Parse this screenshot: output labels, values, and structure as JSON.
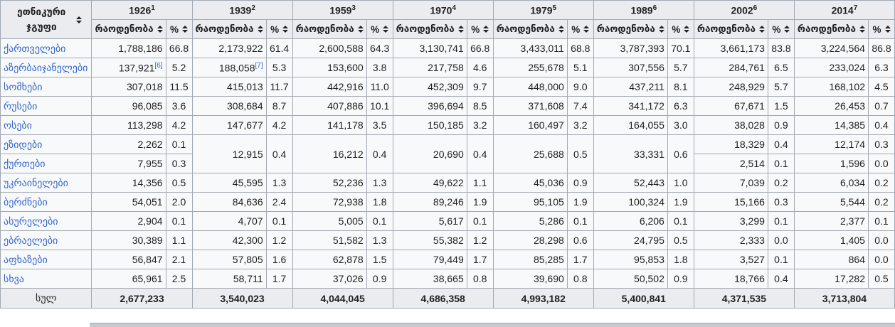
{
  "colors": {
    "header_bg": "#eaecf0",
    "cell_bg": "#f8f9fa",
    "border": "#a2a9b1",
    "link": "#3366cc",
    "text": "#202122"
  },
  "table": {
    "group_header": "ეთნიკური ჯგუფი",
    "count_label": "რაოდენობა",
    "percent_label": "%",
    "total_label": "სულ",
    "years": [
      {
        "label": "1926",
        "sup": "1"
      },
      {
        "label": "1939",
        "sup": "2"
      },
      {
        "label": "1959",
        "sup": "3"
      },
      {
        "label": "1970",
        "sup": "4"
      },
      {
        "label": "1979",
        "sup": "5"
      },
      {
        "label": "1989",
        "sup": "6"
      },
      {
        "label": "2002",
        "sup": "6"
      },
      {
        "label": "2014",
        "sup": "7"
      }
    ],
    "rows": [
      {
        "name": "ქართველები",
        "cells": [
          {
            "n": "1,788,186",
            "p": "66.8"
          },
          {
            "n": "2,173,922",
            "p": "61.4"
          },
          {
            "n": "2,600,588",
            "p": "64.3"
          },
          {
            "n": "3,130,741",
            "p": "66.8"
          },
          {
            "n": "3,433,011",
            "p": "68.8"
          },
          {
            "n": "3,787,393",
            "p": "70.1"
          },
          {
            "n": "3,661,173",
            "p": "83.8"
          },
          {
            "n": "3,224,564",
            "p": "86.8"
          }
        ]
      },
      {
        "name": "აზერბაიჯანელები",
        "cells": [
          {
            "n": "137,921",
            "ref": "[6]",
            "p": "5.2"
          },
          {
            "n": "188,058",
            "ref": "[7]",
            "p": "5.3"
          },
          {
            "n": "153,600",
            "p": "3.8"
          },
          {
            "n": "217,758",
            "p": "4.6"
          },
          {
            "n": "255,678",
            "p": "5.1"
          },
          {
            "n": "307,556",
            "p": "5.7"
          },
          {
            "n": "284,761",
            "p": "6.5"
          },
          {
            "n": "233,024",
            "p": "6.3"
          }
        ]
      },
      {
        "name": "სომხები",
        "cells": [
          {
            "n": "307,018",
            "p": "11.5"
          },
          {
            "n": "415,013",
            "p": "11.7"
          },
          {
            "n": "442,916",
            "p": "11.0"
          },
          {
            "n": "452,309",
            "p": "9.7"
          },
          {
            "n": "448,000",
            "p": "9.0"
          },
          {
            "n": "437,211",
            "p": "8.1"
          },
          {
            "n": "248,929",
            "p": "5.7"
          },
          {
            "n": "168,102",
            "p": "4.5"
          }
        ]
      },
      {
        "name": "რუსები",
        "cells": [
          {
            "n": "96,085",
            "p": "3.6"
          },
          {
            "n": "308,684",
            "p": "8.7"
          },
          {
            "n": "407,886",
            "p": "10.1"
          },
          {
            "n": "396,694",
            "p": "8.5"
          },
          {
            "n": "371,608",
            "p": "7.4"
          },
          {
            "n": "341,172",
            "p": "6.3"
          },
          {
            "n": "67,671",
            "p": "1.5"
          },
          {
            "n": "26,453",
            "p": "0.7"
          }
        ]
      },
      {
        "name": "ოსები",
        "cells": [
          {
            "n": "113,298",
            "p": "4.2"
          },
          {
            "n": "147,677",
            "p": "4.2"
          },
          {
            "n": "141,178",
            "p": "3.5"
          },
          {
            "n": "150,185",
            "p": "3.2"
          },
          {
            "n": "160,497",
            "p": "3.2"
          },
          {
            "n": "164,055",
            "p": "3.0"
          },
          {
            "n": "38,028",
            "p": "0.9"
          },
          {
            "n": "14,385",
            "p": "0.4"
          }
        ]
      },
      {
        "name": "ეზიდები",
        "cells": [
          {
            "n": "2,262",
            "p": "0.1"
          },
          {
            "n": "12,915",
            "p": "0.4",
            "rs": 2
          },
          {
            "n": "16,212",
            "p": "0.4",
            "rs": 2
          },
          {
            "n": "20,690",
            "p": "0.4",
            "rs": 2
          },
          {
            "n": "25,688",
            "p": "0.5",
            "rs": 2
          },
          {
            "n": "33,331",
            "p": "0.6",
            "rs": 2
          },
          {
            "n": "18,329",
            "p": "0.4"
          },
          {
            "n": "12,174",
            "p": "0.3"
          }
        ]
      },
      {
        "name": "ქურთები",
        "cells": [
          {
            "n": "7,955",
            "p": "0.3"
          },
          null,
          null,
          null,
          null,
          null,
          {
            "n": "2,514",
            "p": "0.1"
          },
          {
            "n": "1,596",
            "p": "0.0"
          }
        ]
      },
      {
        "name": "უკრაინელები",
        "cells": [
          {
            "n": "14,356",
            "p": "0.5"
          },
          {
            "n": "45,595",
            "p": "1.3"
          },
          {
            "n": "52,236",
            "p": "1.3"
          },
          {
            "n": "49,622",
            "p": "1.1"
          },
          {
            "n": "45,036",
            "p": "0.9"
          },
          {
            "n": "52,443",
            "p": "1.0"
          },
          {
            "n": "7,039",
            "p": "0.2"
          },
          {
            "n": "6,034",
            "p": "0.2"
          }
        ]
      },
      {
        "name": "ბერძნები",
        "cells": [
          {
            "n": "54,051",
            "p": "2.0"
          },
          {
            "n": "84,636",
            "p": "2.4"
          },
          {
            "n": "72,938",
            "p": "1.8"
          },
          {
            "n": "89,246",
            "p": "1.9"
          },
          {
            "n": "95,105",
            "p": "1.9"
          },
          {
            "n": "100,324",
            "p": "1.9"
          },
          {
            "n": "15,166",
            "p": "0.3"
          },
          {
            "n": "5,544",
            "p": "0.2"
          }
        ]
      },
      {
        "name": "ასურელები",
        "cells": [
          {
            "n": "2,904",
            "p": "0.1"
          },
          {
            "n": "4,707",
            "p": "0.1"
          },
          {
            "n": "5,005",
            "p": "0.1"
          },
          {
            "n": "5,617",
            "p": "0.1"
          },
          {
            "n": "5,286",
            "p": "0.1"
          },
          {
            "n": "6,206",
            "p": "0.1"
          },
          {
            "n": "3,299",
            "p": "0.1"
          },
          {
            "n": "2,377",
            "p": "0.1"
          }
        ]
      },
      {
        "name": "ებრაელები",
        "cells": [
          {
            "n": "30,389",
            "p": "1.1"
          },
          {
            "n": "42,300",
            "p": "1.2"
          },
          {
            "n": "51,582",
            "p": "1.3"
          },
          {
            "n": "55,382",
            "p": "1.2"
          },
          {
            "n": "28,298",
            "p": "0.6"
          },
          {
            "n": "24,795",
            "p": "0.5"
          },
          {
            "n": "2,333",
            "p": "0.0"
          },
          {
            "n": "1,405",
            "p": "0.0"
          }
        ]
      },
      {
        "name": "აფხაზები",
        "cells": [
          {
            "n": "56,847",
            "p": "2.1"
          },
          {
            "n": "57,805",
            "p": "1.6"
          },
          {
            "n": "62,878",
            "p": "1.5"
          },
          {
            "n": "79,449",
            "p": "1.7"
          },
          {
            "n": "85,285",
            "p": "1.7"
          },
          {
            "n": "95,853",
            "p": "1.8"
          },
          {
            "n": "3,527",
            "p": "0.1"
          },
          {
            "n": "864",
            "p": "0.0"
          }
        ]
      },
      {
        "name": "სხვა",
        "cells": [
          {
            "n": "65,961",
            "p": "2.5"
          },
          {
            "n": "58,711",
            "p": "1.7"
          },
          {
            "n": "37,026",
            "p": "0.9"
          },
          {
            "n": "38,665",
            "p": "0.8"
          },
          {
            "n": "39,690",
            "p": "0.8"
          },
          {
            "n": "50,502",
            "p": "0.9"
          },
          {
            "n": "18,766",
            "p": "0.4"
          },
          {
            "n": "17,282",
            "p": "0.5"
          }
        ]
      }
    ],
    "totals": [
      "2,677,233",
      "3,540,023",
      "4,044,045",
      "4,686,358",
      "4,993,182",
      "5,400,841",
      "4,371,535",
      "3,713,804"
    ]
  }
}
